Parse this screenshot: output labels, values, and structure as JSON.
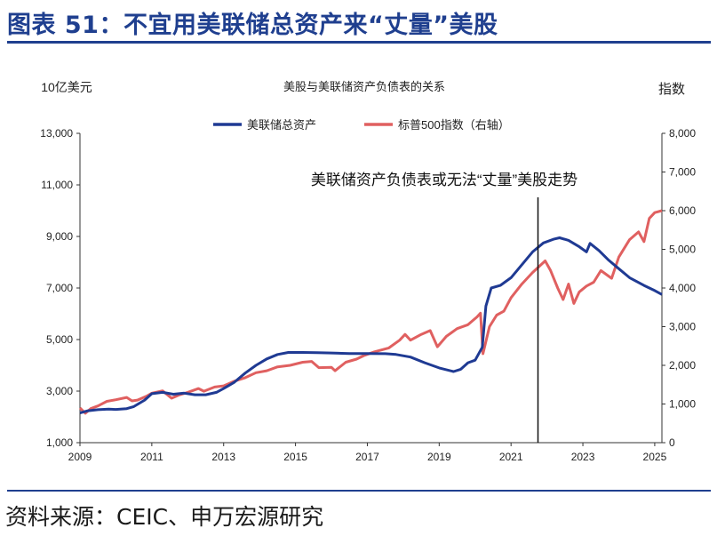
{
  "figure": {
    "title": "图表 51：不宜用美联储总资产来“丈量”美股",
    "source": "资料来源：CEIC、申万宏源研究"
  },
  "chart_data": {
    "type": "line",
    "title": "美股与美联储资产负债表的关系",
    "left_unit": "10亿美元",
    "right_unit": "指数",
    "xlim": [
      2009,
      2025.2
    ],
    "x_ticks": [
      2009,
      2011,
      2013,
      2015,
      2017,
      2019,
      2021,
      2023,
      2025
    ],
    "y_left": {
      "lim": [
        1000,
        13000
      ],
      "ticks": [
        1000,
        3000,
        5000,
        7000,
        9000,
        11000,
        13000
      ]
    },
    "y_right": {
      "lim": [
        0,
        8000
      ],
      "ticks": [
        0,
        1000,
        2000,
        3000,
        4000,
        5000,
        6000,
        7000,
        8000
      ]
    },
    "grid": false,
    "legend_position": "top-center",
    "annotation": {
      "text": "美联储资产负债表或无法“丈量”美股走势",
      "x": 2021.75
    },
    "series": [
      {
        "name": "美联储总资产",
        "axis": "left",
        "color": "#1f3a93",
        "points": [
          [
            2009.0,
            2150
          ],
          [
            2009.2,
            2230
          ],
          [
            2009.5,
            2280
          ],
          [
            2009.8,
            2300
          ],
          [
            2010.0,
            2290
          ],
          [
            2010.3,
            2320
          ],
          [
            2010.5,
            2400
          ],
          [
            2010.8,
            2650
          ],
          [
            2011.0,
            2900
          ],
          [
            2011.3,
            2950
          ],
          [
            2011.6,
            2880
          ],
          [
            2011.9,
            2920
          ],
          [
            2012.2,
            2860
          ],
          [
            2012.5,
            2860
          ],
          [
            2012.8,
            2950
          ],
          [
            2013.0,
            3100
          ],
          [
            2013.3,
            3350
          ],
          [
            2013.6,
            3700
          ],
          [
            2013.9,
            4000
          ],
          [
            2014.2,
            4250
          ],
          [
            2014.5,
            4420
          ],
          [
            2014.8,
            4500
          ],
          [
            2015.2,
            4500
          ],
          [
            2015.6,
            4490
          ],
          [
            2016.0,
            4480
          ],
          [
            2016.5,
            4460
          ],
          [
            2017.0,
            4460
          ],
          [
            2017.5,
            4450
          ],
          [
            2017.8,
            4420
          ],
          [
            2018.2,
            4320
          ],
          [
            2018.6,
            4100
          ],
          [
            2019.0,
            3900
          ],
          [
            2019.4,
            3760
          ],
          [
            2019.6,
            3850
          ],
          [
            2019.8,
            4100
          ],
          [
            2020.0,
            4200
          ],
          [
            2020.2,
            4700
          ],
          [
            2020.3,
            6300
          ],
          [
            2020.45,
            7000
          ],
          [
            2020.7,
            7100
          ],
          [
            2021.0,
            7400
          ],
          [
            2021.3,
            7900
          ],
          [
            2021.6,
            8400
          ],
          [
            2021.9,
            8750
          ],
          [
            2022.2,
            8900
          ],
          [
            2022.35,
            8950
          ],
          [
            2022.6,
            8850
          ],
          [
            2022.9,
            8600
          ],
          [
            2023.1,
            8400
          ],
          [
            2023.2,
            8730
          ],
          [
            2023.45,
            8450
          ],
          [
            2023.7,
            8100
          ],
          [
            2024.0,
            7750
          ],
          [
            2024.3,
            7400
          ],
          [
            2024.7,
            7100
          ],
          [
            2025.0,
            6900
          ],
          [
            2025.2,
            6750
          ]
        ]
      },
      {
        "name": "标普500指数（右轴）",
        "axis": "right",
        "color": "#e06060",
        "points": [
          [
            2009.0,
            900
          ],
          [
            2009.15,
            760
          ],
          [
            2009.3,
            880
          ],
          [
            2009.5,
            950
          ],
          [
            2009.75,
            1070
          ],
          [
            2010.0,
            1110
          ],
          [
            2010.3,
            1170
          ],
          [
            2010.45,
            1080
          ],
          [
            2010.6,
            1100
          ],
          [
            2010.85,
            1200
          ],
          [
            2011.0,
            1280
          ],
          [
            2011.3,
            1340
          ],
          [
            2011.55,
            1150
          ],
          [
            2011.75,
            1230
          ],
          [
            2012.0,
            1300
          ],
          [
            2012.3,
            1400
          ],
          [
            2012.45,
            1330
          ],
          [
            2012.75,
            1440
          ],
          [
            2013.0,
            1470
          ],
          [
            2013.3,
            1590
          ],
          [
            2013.6,
            1680
          ],
          [
            2013.9,
            1810
          ],
          [
            2014.2,
            1860
          ],
          [
            2014.5,
            1960
          ],
          [
            2014.85,
            2000
          ],
          [
            2015.2,
            2080
          ],
          [
            2015.45,
            2100
          ],
          [
            2015.65,
            1940
          ],
          [
            2016.0,
            1950
          ],
          [
            2016.1,
            1860
          ],
          [
            2016.4,
            2080
          ],
          [
            2016.7,
            2160
          ],
          [
            2016.9,
            2250
          ],
          [
            2017.2,
            2350
          ],
          [
            2017.6,
            2450
          ],
          [
            2017.9,
            2650
          ],
          [
            2018.05,
            2800
          ],
          [
            2018.2,
            2650
          ],
          [
            2018.5,
            2800
          ],
          [
            2018.75,
            2900
          ],
          [
            2018.95,
            2480
          ],
          [
            2019.2,
            2750
          ],
          [
            2019.5,
            2950
          ],
          [
            2019.8,
            3050
          ],
          [
            2020.05,
            3250
          ],
          [
            2020.15,
            3350
          ],
          [
            2020.22,
            2300
          ],
          [
            2020.4,
            3000
          ],
          [
            2020.6,
            3300
          ],
          [
            2020.8,
            3400
          ],
          [
            2021.0,
            3750
          ],
          [
            2021.3,
            4100
          ],
          [
            2021.6,
            4400
          ],
          [
            2021.95,
            4700
          ],
          [
            2022.1,
            4450
          ],
          [
            2022.3,
            4000
          ],
          [
            2022.45,
            3700
          ],
          [
            2022.6,
            4100
          ],
          [
            2022.75,
            3600
          ],
          [
            2022.9,
            3900
          ],
          [
            2023.1,
            4050
          ],
          [
            2023.3,
            4150
          ],
          [
            2023.5,
            4450
          ],
          [
            2023.8,
            4250
          ],
          [
            2024.0,
            4800
          ],
          [
            2024.3,
            5250
          ],
          [
            2024.55,
            5450
          ],
          [
            2024.7,
            5200
          ],
          [
            2024.85,
            5800
          ],
          [
            2025.0,
            5950
          ],
          [
            2025.2,
            6000
          ]
        ]
      }
    ]
  }
}
